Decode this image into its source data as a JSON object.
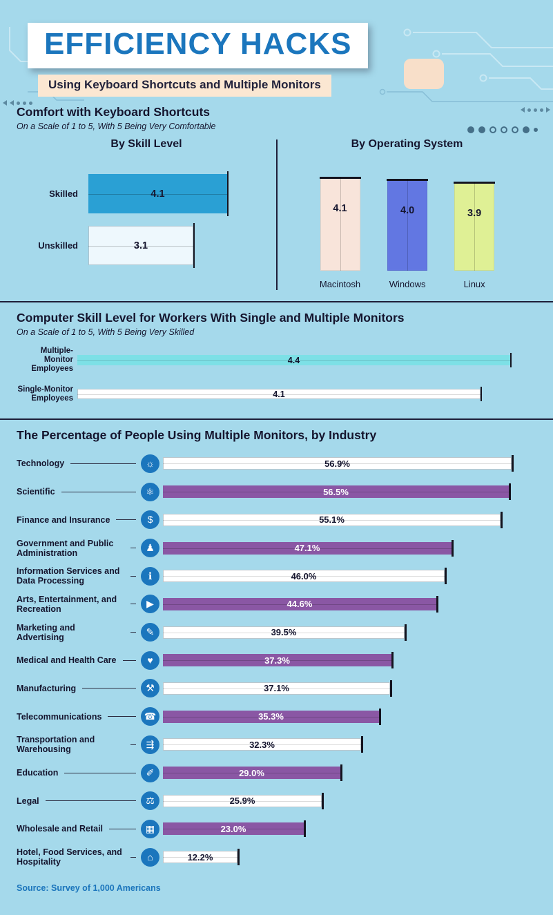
{
  "header": {
    "title": "EFFICIENCY HACKS",
    "subtitle": "Using Keyboard Shortcuts and Multiple Monitors"
  },
  "footer": {
    "source": "Source: Survey of 1,000 Americans"
  },
  "colors": {
    "background": "#a5d9eb",
    "title_blue": "#1b76bd",
    "heading_dark": "#15152e",
    "subtitle_bg": "#fbe7d2",
    "skilled_bar": "#2aa0d4",
    "unskilled_bar": "#eef8fd",
    "macintosh_bar": "#f8e4da",
    "windows_bar": "#6277e2",
    "linux_bar": "#dff095",
    "multiple_monitor_bar": "#7de0e6",
    "single_monitor_bar": "#ffffff",
    "industry_purple": "#8a57a4",
    "industry_white": "#ffffff",
    "icon_circle": "#1b76bd",
    "source_blue": "#1b75bc"
  },
  "chart_data": [
    {
      "type": "bar",
      "orientation": "horizontal",
      "section_title": "Comfort with Keyboard Shortcuts",
      "section_subtitle": "On a Scale of 1 to 5, With 5 Being Very Comfortable",
      "title": "By Skill Level",
      "categories": [
        "Skilled",
        "Unskilled"
      ],
      "values": [
        4.1,
        3.1
      ],
      "value_labels": [
        "4.1",
        "3.1"
      ],
      "scale_min": 1,
      "scale_max": 5,
      "grid": false,
      "legend": false
    },
    {
      "type": "bar",
      "orientation": "vertical",
      "title": "By Operating System",
      "categories": [
        "Macintosh",
        "Windows",
        "Linux"
      ],
      "values": [
        4.1,
        4.0,
        3.9
      ],
      "value_labels": [
        "4.1",
        "4.0",
        "3.9"
      ],
      "scale_min": 1,
      "scale_max": 5,
      "grid": false,
      "legend": false
    },
    {
      "type": "bar",
      "orientation": "horizontal",
      "section_title": "Computer Skill Level for Workers With Single and Multiple Monitors",
      "section_subtitle": "On a Scale of 1 to 5, With 5 Being Very Skilled",
      "categories": [
        "Multiple-Monitor Employees",
        "Single-Monitor Employees"
      ],
      "values": [
        4.4,
        4.1
      ],
      "value_labels": [
        "4.4",
        "4.1"
      ],
      "scale_min": 1,
      "scale_max": 5,
      "grid": false,
      "legend": false
    },
    {
      "type": "bar",
      "orientation": "horizontal",
      "section_title": "The Percentage of People Using Multiple Monitors, by Industry",
      "unit": "%",
      "grid": false,
      "legend": false,
      "rows": [
        {
          "label": "Technology",
          "value": 56.9,
          "display": "56.9%",
          "icon": "lightbulb-icon",
          "glyph": "☼"
        },
        {
          "label": "Scientific",
          "value": 56.5,
          "display": "56.5%",
          "icon": "atom-icon",
          "glyph": "⚛"
        },
        {
          "label": "Finance and Insurance",
          "value": 55.1,
          "display": "55.1%",
          "icon": "piggy-bank-icon",
          "glyph": "$"
        },
        {
          "label": "Government and Public Administration",
          "value": 47.1,
          "display": "47.1%",
          "icon": "person-badge-icon",
          "glyph": "♟"
        },
        {
          "label": "Information Services and Data Processing",
          "value": 46.0,
          "display": "46.0%",
          "icon": "info-icon",
          "glyph": "ℹ"
        },
        {
          "label": "Arts, Entertainment, and Recreation",
          "value": 44.6,
          "display": "44.6%",
          "icon": "play-icon",
          "glyph": "▶"
        },
        {
          "label": "Marketing and Advertising",
          "value": 39.5,
          "display": "39.5%",
          "icon": "pencil-icon",
          "glyph": "✎"
        },
        {
          "label": "Medical and Health Care",
          "value": 37.3,
          "display": "37.3%",
          "icon": "health-heart-icon",
          "glyph": "♥"
        },
        {
          "label": "Manufacturing",
          "value": 37.1,
          "display": "37.1%",
          "icon": "factory-icon",
          "glyph": "⚒"
        },
        {
          "label": "Telecommunications",
          "value": 35.3,
          "display": "35.3%",
          "icon": "phone-icon",
          "glyph": "☎"
        },
        {
          "label": "Transportation and Warehousing",
          "value": 32.3,
          "display": "32.3%",
          "icon": "truck-icon",
          "glyph": "⇶"
        },
        {
          "label": "Education",
          "value": 29.0,
          "display": "29.0%",
          "icon": "graduation-cap-icon",
          "glyph": "✐"
        },
        {
          "label": "Legal",
          "value": 25.9,
          "display": "25.9%",
          "icon": "briefcase-icon",
          "glyph": "⚖"
        },
        {
          "label": "Wholesale and Retail",
          "value": 23.0,
          "display": "23.0%",
          "icon": "calculator-icon",
          "glyph": "▦"
        },
        {
          "label": "Hotel, Food Services, and Hospitality",
          "value": 12.2,
          "display": "12.2%",
          "icon": "bed-icon",
          "glyph": "⌂"
        }
      ]
    }
  ]
}
